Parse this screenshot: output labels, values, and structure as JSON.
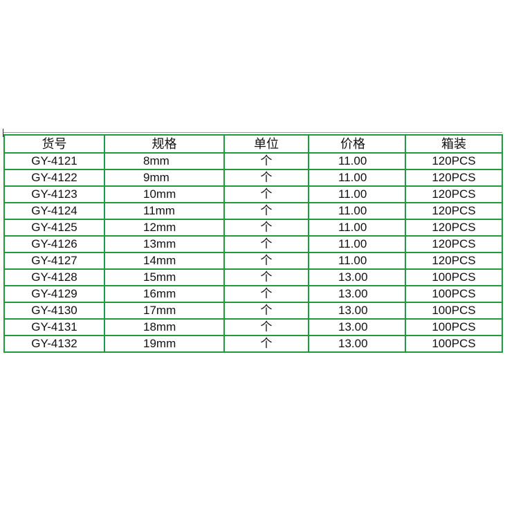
{
  "table": {
    "headers": [
      "货号",
      "规格",
      "单位",
      "价格",
      "箱装"
    ],
    "rows": [
      [
        "GY-4121",
        "8mm",
        "个",
        "11.00",
        "120PCS"
      ],
      [
        "GY-4122",
        "9mm",
        "个",
        "11.00",
        "120PCS"
      ],
      [
        "GY-4123",
        "10mm",
        "个",
        "11.00",
        "120PCS"
      ],
      [
        "GY-4124",
        "11mm",
        "个",
        "11.00",
        "120PCS"
      ],
      [
        "GY-4125",
        "12mm",
        "个",
        "11.00",
        "120PCS"
      ],
      [
        "GY-4126",
        "13mm",
        "个",
        "11.00",
        "120PCS"
      ],
      [
        "GY-4127",
        "14mm",
        "个",
        "11.00",
        "120PCS"
      ],
      [
        "GY-4128",
        "15mm",
        "个",
        "13.00",
        "100PCS"
      ],
      [
        "GY-4129",
        "16mm",
        "个",
        "13.00",
        "100PCS"
      ],
      [
        "GY-4130",
        "17mm",
        "个",
        "13.00",
        "100PCS"
      ],
      [
        "GY-4131",
        "18mm",
        "个",
        "13.00",
        "100PCS"
      ],
      [
        "GY-4132",
        "19mm",
        "个",
        "13.00",
        "100PCS"
      ]
    ]
  },
  "colors": {
    "border": "#1e9a3e",
    "text": "#111111"
  }
}
